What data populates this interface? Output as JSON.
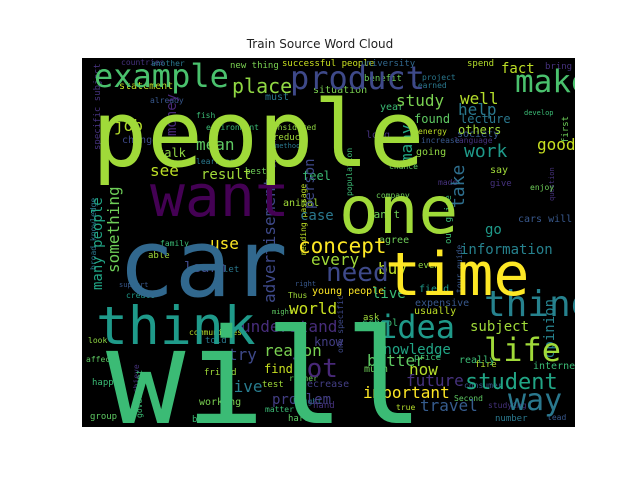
{
  "chart_data": {
    "type": "wordcloud",
    "title": "Train Source Word Cloud",
    "background": "#000000",
    "colormap": "viridis",
    "words": [
      {
        "text": "people",
        "color": "#a0da39"
      },
      {
        "text": "will",
        "color": "#3bbb75"
      },
      {
        "text": "one",
        "color": "#a0da39"
      },
      {
        "text": "car",
        "color": "#31688e"
      },
      {
        "text": "want",
        "color": "#440154"
      },
      {
        "text": "time",
        "color": "#fde725"
      },
      {
        "text": "think",
        "color": "#1f9a8a"
      },
      {
        "text": "product",
        "color": "#3e4989"
      },
      {
        "text": "example",
        "color": "#4ac16d"
      },
      {
        "text": "make",
        "color": "#4ac16d"
      },
      {
        "text": "thing",
        "color": "#26828e"
      },
      {
        "text": "life",
        "color": "#a0da39"
      },
      {
        "text": "idea",
        "color": "#1f9a8a"
      },
      {
        "text": "lot",
        "color": "#482878"
      },
      {
        "text": "way",
        "color": "#2a788e"
      },
      {
        "text": "student",
        "color": "#21a585"
      },
      {
        "text": "need",
        "color": "#3e4989"
      },
      {
        "text": "concept",
        "color": "#fde725"
      },
      {
        "text": "place",
        "color": "#90d743"
      },
      {
        "text": "work",
        "color": "#1f9a8a"
      },
      {
        "text": "good",
        "color": "#c8e020"
      },
      {
        "text": "fact",
        "color": "#bddf26"
      },
      {
        "text": "well",
        "color": "#b5de2b"
      },
      {
        "text": "help",
        "color": "#2a788e"
      },
      {
        "text": "study",
        "color": "#7ad151"
      },
      {
        "text": "go",
        "color": "#1f9a8a"
      },
      {
        "text": "take",
        "color": "#2e6f8e"
      },
      {
        "text": "information",
        "color": "#26828e"
      },
      {
        "text": "every",
        "color": "#a0da39"
      },
      {
        "text": "advertisement",
        "color": "#3e4989"
      },
      {
        "text": "understand",
        "color": "#472d7b"
      },
      {
        "text": "world",
        "color": "#c8e020"
      },
      {
        "text": "reason",
        "color": "#7ad151"
      },
      {
        "text": "knowledge",
        "color": "#21a585"
      },
      {
        "text": "better",
        "color": "#5ec962"
      },
      {
        "text": "now",
        "color": "#b5de2b"
      },
      {
        "text": "important",
        "color": "#fde725"
      },
      {
        "text": "future",
        "color": "#46327e"
      },
      {
        "text": "travel",
        "color": "#365c8d"
      },
      {
        "text": "live",
        "color": "#3bbb75"
      },
      {
        "text": "buy",
        "color": "#bddf26"
      },
      {
        "text": "subject",
        "color": "#a0da39"
      },
      {
        "text": "opinion",
        "color": "#26828e"
      },
      {
        "text": "problem",
        "color": "#433e85"
      },
      {
        "text": "give",
        "color": "#287c8e"
      },
      {
        "text": "try",
        "color": "#3e4989"
      },
      {
        "text": "use",
        "color": "#fde725"
      },
      {
        "text": "job",
        "color": "#b5de2b"
      },
      {
        "text": "mean",
        "color": "#5ec962"
      },
      {
        "text": "money",
        "color": "#482878"
      },
      {
        "text": "result",
        "color": "#a0da39"
      },
      {
        "text": "see",
        "color": "#bddf26"
      },
      {
        "text": "learn",
        "color": "#3e4989"
      },
      {
        "text": "something",
        "color": "#6ece58"
      },
      {
        "text": "many people",
        "color": "#21a585"
      },
      {
        "text": "person",
        "color": "#3e4989"
      },
      {
        "text": "case",
        "color": "#2a788e"
      },
      {
        "text": "young people",
        "color": "#fde725"
      },
      {
        "text": "know",
        "color": "#433e85"
      },
      {
        "text": "find",
        "color": "#c8e020"
      },
      {
        "text": "feel",
        "color": "#3bbb75"
      },
      {
        "text": "many",
        "color": "#22a884"
      },
      {
        "text": "must",
        "color": "#2a788e"
      },
      {
        "text": "new thing",
        "color": "#7ad151"
      },
      {
        "text": "successful people",
        "color": "#c8e020"
      },
      {
        "text": "university",
        "color": "#31688e"
      },
      {
        "text": "statement",
        "color": "#bddf26"
      },
      {
        "text": "change",
        "color": "#3e4989"
      },
      {
        "text": "talk",
        "color": "#90d743"
      },
      {
        "text": "communities",
        "color": "#b5de2b"
      },
      {
        "text": "society",
        "color": "#38588c"
      },
      {
        "text": "bring",
        "color": "#46327e"
      },
      {
        "text": "situation",
        "color": "#7ad151"
      },
      {
        "text": "benefit",
        "color": "#6ece58"
      },
      {
        "text": "spend",
        "color": "#b5de2b"
      },
      {
        "text": "year",
        "color": "#3bbb75"
      },
      {
        "text": "learned",
        "color": "#2a788e"
      },
      {
        "text": "long",
        "color": "#46327e"
      },
      {
        "text": "found",
        "color": "#5ec962"
      },
      {
        "text": "lecture",
        "color": "#2a788e"
      },
      {
        "text": "energy",
        "color": "#bddf26"
      },
      {
        "text": "others",
        "color": "#a0da39"
      },
      {
        "text": "language",
        "color": "#46327e"
      },
      {
        "text": "increase",
        "color": "#38588c"
      },
      {
        "text": "going",
        "color": "#90d743"
      },
      {
        "text": "first",
        "color": "#6ece58"
      },
      {
        "text": "school",
        "color": "#3bbb75"
      },
      {
        "text": "field",
        "color": "#1f9a8a"
      },
      {
        "text": "expensive",
        "color": "#38588c"
      },
      {
        "text": "agree",
        "color": "#6ece58"
      },
      {
        "text": "even",
        "color": "#90d743"
      },
      {
        "text": "usually",
        "color": "#bddf26"
      },
      {
        "text": "ask",
        "color": "#a0da39"
      },
      {
        "text": "one specific",
        "color": "#3e4989"
      },
      {
        "text": "cars will",
        "color": "#38588c"
      },
      {
        "text": "much",
        "color": "#6ece58"
      },
      {
        "text": "really",
        "color": "#3bbb75"
      },
      {
        "text": "fire",
        "color": "#b5de2b"
      },
      {
        "text": "internet",
        "color": "#3bbb75"
      },
      {
        "text": "consumer",
        "color": "#38588c"
      },
      {
        "text": "price",
        "color": "#3bbb75"
      },
      {
        "text": "Second",
        "color": "#5ec962"
      },
      {
        "text": "studying",
        "color": "#46327e"
      },
      {
        "text": "number",
        "color": "#2a788e"
      },
      {
        "text": "lead",
        "color": "#38588c"
      },
      {
        "text": "test",
        "color": "#a0da39"
      },
      {
        "text": "decrease",
        "color": "#433e85"
      },
      {
        "text": "matter",
        "color": "#3bbb75"
      },
      {
        "text": "hand",
        "color": "#46327e"
      },
      {
        "text": "hard",
        "color": "#5ec962"
      },
      {
        "text": "bought",
        "color": "#2a788e"
      },
      {
        "text": "working",
        "color": "#7ad151"
      },
      {
        "text": "book",
        "color": "#3bbb75"
      },
      {
        "text": "friend",
        "color": "#a0da39"
      },
      {
        "text": "told",
        "color": "#2a788e"
      },
      {
        "text": "group",
        "color": "#5ec962"
      },
      {
        "text": "happen",
        "color": "#3bbb75"
      },
      {
        "text": "affect",
        "color": "#5ec962"
      },
      {
        "text": "look",
        "color": "#90d743"
      },
      {
        "text": "achieve",
        "color": "#46327e"
      },
      {
        "text": "create",
        "color": "#1f9a8a"
      },
      {
        "text": "support",
        "color": "#38588c"
      },
      {
        "text": "able",
        "color": "#a0da39"
      },
      {
        "text": "family",
        "color": "#3bbb75"
      },
      {
        "text": "let",
        "color": "#2a788e"
      },
      {
        "text": "best",
        "color": "#6ece58"
      },
      {
        "text": "animal",
        "color": "#a0da39"
      },
      {
        "text": "reading passage",
        "color": "#bddf26"
      },
      {
        "text": "population",
        "color": "#3bbb75"
      },
      {
        "text": "method",
        "color": "#2a788e"
      },
      {
        "text": "considered",
        "color": "#90d743"
      },
      {
        "text": "reduce",
        "color": "#a0da39"
      },
      {
        "text": "learning",
        "color": "#2a788e"
      },
      {
        "text": "fish",
        "color": "#3bbb75"
      },
      {
        "text": "already",
        "color": "#38588c"
      },
      {
        "text": "countries",
        "color": "#46327e"
      },
      {
        "text": "another",
        "color": "#2a788e"
      },
      {
        "text": "question",
        "color": "#46327e"
      },
      {
        "text": "enjoy",
        "color": "#6ece58"
      },
      {
        "text": "develop",
        "color": "#3bbb75"
      },
      {
        "text": "company",
        "color": "#6ece58"
      },
      {
        "text": "chance",
        "color": "#5ec962"
      },
      {
        "text": "made",
        "color": "#46327e"
      },
      {
        "text": "say",
        "color": "#a0da39"
      },
      {
        "text": "give",
        "color": "#46327e"
      },
      {
        "text": "Thus",
        "color": "#a0da39"
      },
      {
        "text": "right",
        "color": "#38588c"
      },
      {
        "text": "might",
        "color": "#5ec962"
      },
      {
        "text": "rather",
        "color": "#6ece58"
      },
      {
        "text": "even though",
        "color": "#46327e"
      },
      {
        "text": "broad knowledge",
        "color": "#2a788e"
      },
      {
        "text": "specific subject",
        "color": "#46327e"
      },
      {
        "text": "environment",
        "color": "#3bbb75"
      },
      {
        "text": "project",
        "color": "#2a788e"
      },
      {
        "text": "can't",
        "color": "#6ece58"
      },
      {
        "text": "our guide",
        "color": "#3bbb75"
      },
      {
        "text": "tour guide",
        "color": "#38588c"
      },
      {
        "text": "government",
        "color": "#3bbb75"
      },
      {
        "text": "true",
        "color": "#b5de2b"
      }
    ]
  }
}
